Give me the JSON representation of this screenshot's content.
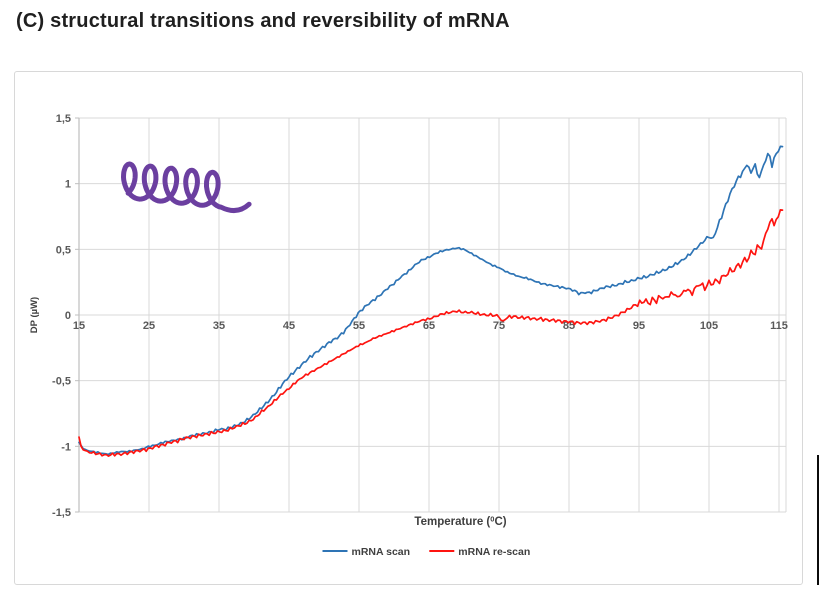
{
  "page": {
    "title": "(C) structural transitions and reversibility of mRNA"
  },
  "chart_data": {
    "type": "line",
    "title": "",
    "xlabel": {
      "prefix": "Temperature (",
      "sup": "0",
      "suffix": "C)"
    },
    "ylabel": "DP (µW)",
    "xlim": [
      15,
      116
    ],
    "ylim": [
      -1.5,
      1.5
    ],
    "x_ticks": [
      15,
      25,
      35,
      45,
      55,
      65,
      75,
      85,
      95,
      105,
      115
    ],
    "y_ticks": [
      {
        "v": 1.5,
        "label": "1,5"
      },
      {
        "v": 1.0,
        "label": "1"
      },
      {
        "v": 0.5,
        "label": "0,5"
      },
      {
        "v": 0.0,
        "label": "0"
      },
      {
        "v": -0.5,
        "label": "-0,5"
      },
      {
        "v": -1.0,
        "label": "-1"
      },
      {
        "v": -1.5,
        "label": "-1,5"
      }
    ],
    "grid": true,
    "legend_position": "bottom-center",
    "colors": {
      "grid": "#d9d9d9",
      "axis": "#bfbfbf",
      "tick_text": "#595959",
      "axis_title_text": "#404040",
      "legend_text": "#404040",
      "frame_border": "#d8d8d8",
      "doodle": "#6b3fa0"
    },
    "series": [
      {
        "name": "mRNA scan",
        "color": "#2e74b5",
        "noise": 0.012,
        "points": [
          [
            15,
            -0.97
          ],
          [
            15.5,
            -1.01
          ],
          [
            16,
            -1.03
          ],
          [
            17,
            -1.04
          ],
          [
            18,
            -1.05
          ],
          [
            19,
            -1.06
          ],
          [
            20,
            -1.05
          ],
          [
            21,
            -1.04
          ],
          [
            22,
            -1.04
          ],
          [
            23,
            -1.03
          ],
          [
            24,
            -1.02
          ],
          [
            25,
            -1.0
          ],
          [
            26,
            -0.99
          ],
          [
            27,
            -0.97
          ],
          [
            28,
            -0.96
          ],
          [
            29,
            -0.95
          ],
          [
            30,
            -0.94
          ],
          [
            31,
            -0.92
          ],
          [
            32,
            -0.91
          ],
          [
            33,
            -0.9
          ],
          [
            34,
            -0.89
          ],
          [
            35,
            -0.87
          ],
          [
            36,
            -0.87
          ],
          [
            37,
            -0.85
          ],
          [
            38,
            -0.83
          ],
          [
            39,
            -0.8
          ],
          [
            40,
            -0.76
          ],
          [
            41,
            -0.71
          ],
          [
            42,
            -0.66
          ],
          [
            43,
            -0.6
          ],
          [
            44,
            -0.53
          ],
          [
            45,
            -0.47
          ],
          [
            46,
            -0.42
          ],
          [
            47,
            -0.37
          ],
          [
            48,
            -0.32
          ],
          [
            49,
            -0.28
          ],
          [
            50,
            -0.24
          ],
          [
            51,
            -0.2
          ],
          [
            52,
            -0.17
          ],
          [
            53,
            -0.12
          ],
          [
            54,
            -0.05
          ],
          [
            55,
            0.02
          ],
          [
            56,
            0.07
          ],
          [
            57,
            0.11
          ],
          [
            58,
            0.15
          ],
          [
            59,
            0.2
          ],
          [
            60,
            0.24
          ],
          [
            61,
            0.29
          ],
          [
            62,
            0.33
          ],
          [
            63,
            0.38
          ],
          [
            64,
            0.42
          ],
          [
            65,
            0.44
          ],
          [
            66,
            0.47
          ],
          [
            67,
            0.49
          ],
          [
            68,
            0.5
          ],
          [
            69,
            0.51
          ],
          [
            70,
            0.5
          ],
          [
            71,
            0.47
          ],
          [
            72,
            0.44
          ],
          [
            73,
            0.41
          ],
          [
            74,
            0.38
          ],
          [
            75,
            0.36
          ],
          [
            76,
            0.33
          ],
          [
            77,
            0.31
          ],
          [
            78,
            0.29
          ],
          [
            79,
            0.28
          ],
          [
            80,
            0.26
          ],
          [
            81,
            0.24
          ],
          [
            82,
            0.23
          ],
          [
            83,
            0.22
          ],
          [
            84,
            0.21
          ],
          [
            85,
            0.2
          ],
          [
            86,
            0.18
          ],
          [
            86.5,
            0.16
          ],
          [
            87,
            0.17
          ],
          [
            88,
            0.17
          ],
          [
            89,
            0.19
          ],
          [
            90,
            0.21
          ],
          [
            91,
            0.22
          ],
          [
            92,
            0.23
          ],
          [
            93,
            0.25
          ],
          [
            94,
            0.26
          ],
          [
            95,
            0.28
          ],
          [
            96,
            0.29
          ],
          [
            97,
            0.31
          ],
          [
            98,
            0.33
          ],
          [
            99,
            0.35
          ],
          [
            100,
            0.38
          ],
          [
            101,
            0.41
          ],
          [
            102,
            0.45
          ],
          [
            103,
            0.5
          ],
          [
            104,
            0.55
          ],
          [
            105,
            0.6
          ],
          [
            105.5,
            0.57
          ],
          [
            106,
            0.64
          ],
          [
            107,
            0.78
          ],
          [
            108,
            0.92
          ],
          [
            109,
            1.03
          ],
          [
            110,
            1.1
          ],
          [
            110.5,
            1.16
          ],
          [
            111,
            1.07
          ],
          [
            111.5,
            1.17
          ],
          [
            112,
            1.04
          ],
          [
            112.5,
            1.09
          ],
          [
            113,
            1.17
          ],
          [
            113.5,
            1.24
          ],
          [
            114,
            1.14
          ],
          [
            114.5,
            1.22
          ],
          [
            115,
            1.26
          ],
          [
            115.3,
            1.29
          ],
          [
            115.6,
            1.27
          ]
        ]
      },
      {
        "name": "mRNA re-scan",
        "color": "#fe1410",
        "noise": 0.013,
        "points": [
          [
            15,
            -0.93
          ],
          [
            15.3,
            -1.0
          ],
          [
            16,
            -1.04
          ],
          [
            17,
            -1.05
          ],
          [
            18,
            -1.06
          ],
          [
            19,
            -1.07
          ],
          [
            20,
            -1.06
          ],
          [
            21,
            -1.06
          ],
          [
            22,
            -1.05
          ],
          [
            23,
            -1.04
          ],
          [
            24,
            -1.03
          ],
          [
            25,
            -1.02
          ],
          [
            26,
            -1.0
          ],
          [
            27,
            -0.99
          ],
          [
            28,
            -0.97
          ],
          [
            29,
            -0.96
          ],
          [
            30,
            -0.94
          ],
          [
            31,
            -0.93
          ],
          [
            32,
            -0.92
          ],
          [
            33,
            -0.91
          ],
          [
            34,
            -0.9
          ],
          [
            35,
            -0.89
          ],
          [
            36,
            -0.88
          ],
          [
            37,
            -0.86
          ],
          [
            38,
            -0.84
          ],
          [
            39,
            -0.82
          ],
          [
            40,
            -0.79
          ],
          [
            41,
            -0.74
          ],
          [
            42,
            -0.7
          ],
          [
            43,
            -0.65
          ],
          [
            44,
            -0.6
          ],
          [
            45,
            -0.56
          ],
          [
            46,
            -0.51
          ],
          [
            47,
            -0.47
          ],
          [
            48,
            -0.44
          ],
          [
            49,
            -0.41
          ],
          [
            50,
            -0.38
          ],
          [
            51,
            -0.35
          ],
          [
            52,
            -0.32
          ],
          [
            53,
            -0.29
          ],
          [
            54,
            -0.26
          ],
          [
            55,
            -0.23
          ],
          [
            56,
            -0.21
          ],
          [
            57,
            -0.18
          ],
          [
            58,
            -0.16
          ],
          [
            59,
            -0.14
          ],
          [
            60,
            -0.12
          ],
          [
            61,
            -0.1
          ],
          [
            62,
            -0.08
          ],
          [
            63,
            -0.06
          ],
          [
            64,
            -0.04
          ],
          [
            65,
            -0.03
          ],
          [
            66,
            -0.01
          ],
          [
            67,
            0.01
          ],
          [
            68,
            0.02
          ],
          [
            69,
            0.03
          ],
          [
            70,
            0.02
          ],
          [
            71,
            0.02
          ],
          [
            72,
            0.01
          ],
          [
            73,
            0.0
          ],
          [
            74,
            0.0
          ],
          [
            75,
            -0.01
          ],
          [
            75.5,
            -0.06
          ],
          [
            76,
            -0.02
          ],
          [
            77,
            -0.01
          ],
          [
            78,
            -0.02
          ],
          [
            79,
            -0.02
          ],
          [
            80,
            -0.03
          ],
          [
            81,
            -0.03
          ],
          [
            82,
            -0.04
          ],
          [
            83,
            -0.04
          ],
          [
            84,
            -0.05
          ],
          [
            85,
            -0.05
          ],
          [
            86,
            -0.06
          ],
          [
            87,
            -0.06
          ],
          [
            88,
            -0.06
          ],
          [
            89,
            -0.05
          ],
          [
            90,
            -0.04
          ],
          [
            91,
            -0.02
          ],
          [
            92,
            0.0
          ],
          [
            93,
            0.03
          ],
          [
            94,
            0.06
          ],
          [
            95,
            0.09
          ],
          [
            96,
            0.11
          ],
          [
            96.5,
            0.08
          ],
          [
            97,
            0.13
          ],
          [
            97.5,
            0.1
          ],
          [
            98,
            0.15
          ],
          [
            98.5,
            0.12
          ],
          [
            99,
            0.14
          ],
          [
            100,
            0.17
          ],
          [
            100.5,
            0.13
          ],
          [
            101,
            0.16
          ],
          [
            102,
            0.2
          ],
          [
            102.5,
            0.15
          ],
          [
            103,
            0.21
          ],
          [
            104,
            0.24
          ],
          [
            104.5,
            0.19
          ],
          [
            105,
            0.26
          ],
          [
            105.5,
            0.22
          ],
          [
            106,
            0.28
          ],
          [
            106.5,
            0.24
          ],
          [
            107,
            0.32
          ],
          [
            107.5,
            0.28
          ],
          [
            108,
            0.36
          ],
          [
            108.5,
            0.31
          ],
          [
            109,
            0.4
          ],
          [
            109.5,
            0.36
          ],
          [
            110,
            0.44
          ],
          [
            110.5,
            0.4
          ],
          [
            111,
            0.49
          ],
          [
            111.5,
            0.45
          ],
          [
            112,
            0.54
          ],
          [
            112.5,
            0.5
          ],
          [
            113,
            0.61
          ],
          [
            113.5,
            0.67
          ],
          [
            114,
            0.74
          ],
          [
            114.3,
            0.68
          ],
          [
            114.6,
            0.72
          ],
          [
            115,
            0.77
          ],
          [
            115.3,
            0.81
          ],
          [
            115.6,
            0.79
          ]
        ]
      }
    ],
    "annotation": {
      "name": "mrna-coil-doodle",
      "loops": 5,
      "color": "#6b3fa0"
    }
  }
}
